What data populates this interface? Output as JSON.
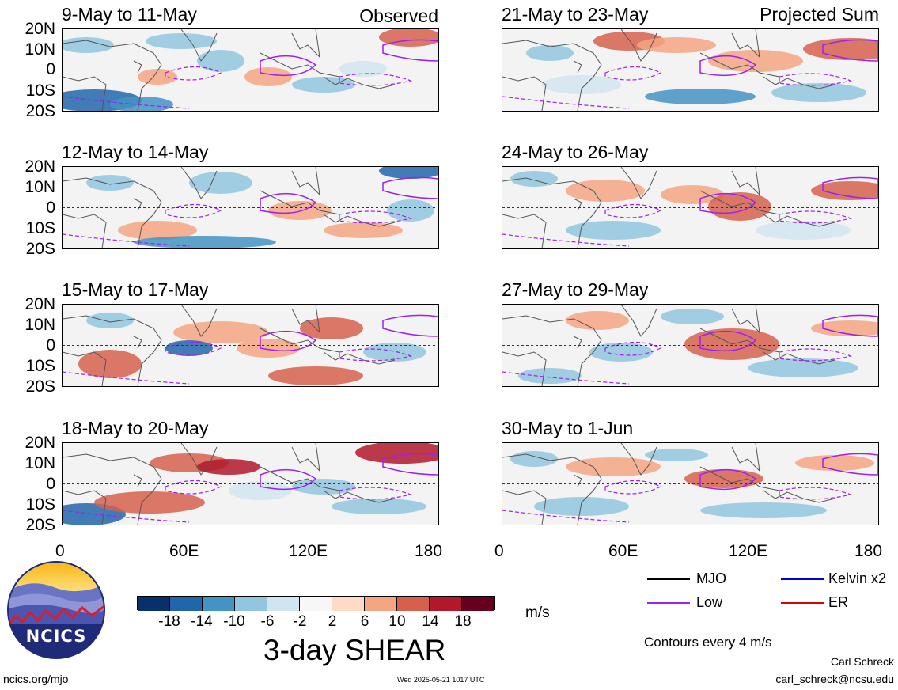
{
  "panels": [
    {
      "id": "p1",
      "title": "9-May to 11-May",
      "label": "Observed"
    },
    {
      "id": "p2",
      "title": "21-May to 23-May",
      "label": "Projected Sum"
    },
    {
      "id": "p3",
      "title": "12-May to 14-May",
      "label": ""
    },
    {
      "id": "p4",
      "title": "24-May to 26-May",
      "label": ""
    },
    {
      "id": "p5",
      "title": "15-May to 17-May",
      "label": ""
    },
    {
      "id": "p6",
      "title": "27-May to 29-May",
      "label": ""
    },
    {
      "id": "p7",
      "title": "18-May to 20-May",
      "label": ""
    },
    {
      "id": "p8",
      "title": "30-May to 1-Jun",
      "label": ""
    }
  ],
  "lat_labels": [
    "20N",
    "10N",
    "0",
    "10S",
    "20S"
  ],
  "lon_labels": [
    "0",
    "60E",
    "120E",
    "180"
  ],
  "colorbar": {
    "colors": [
      "#08306b",
      "#2166ac",
      "#4393c3",
      "#92c5de",
      "#d1e5f0",
      "#f7f7f7",
      "#fddbc7",
      "#f4a582",
      "#d6604d",
      "#b2182b",
      "#67001f"
    ],
    "tick_labels": [
      "-18",
      "-14",
      "-10",
      "-6",
      "-2",
      "2",
      "6",
      "10",
      "14",
      "18"
    ],
    "units": "m/s"
  },
  "title": "3-day SHEAR",
  "legend": {
    "items": [
      {
        "label": "MJO",
        "color": "#000000"
      },
      {
        "label": "Kelvin x2",
        "color": "#0000dd"
      },
      {
        "label": "Low",
        "color": "#a020f0"
      },
      {
        "label": "ER",
        "color": "#dd0000"
      }
    ],
    "note": "Contours every 4 m/s"
  },
  "logo_text": "NCICS",
  "footer": {
    "left": "ncics.org/mjo",
    "center": "Wed 2025-05-21 1017 UTC",
    "author": "Carl Schreck",
    "email": "carl_schreck@ncsu.edu"
  },
  "colors": {
    "low_contour": "#a020f0",
    "coast": "#555555",
    "equator": "#333333"
  }
}
